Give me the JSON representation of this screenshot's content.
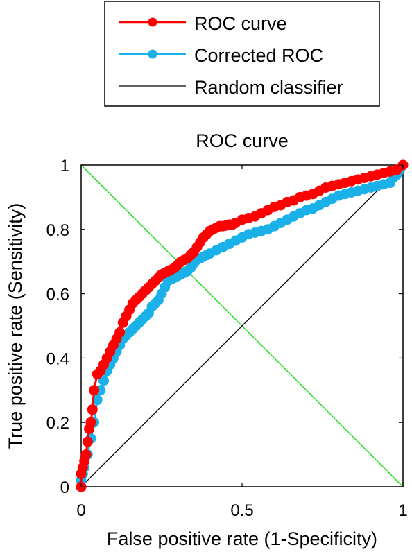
{
  "chart_data": {
    "type": "line",
    "title": "ROC curve",
    "xlabel": "False positive rate (1-Specificity)",
    "ylabel": "True positive rate (Sensitivity)",
    "xlim": [
      0,
      1
    ],
    "ylim": [
      0,
      1
    ],
    "xticks": [
      0,
      0.5,
      1
    ],
    "yticks": [
      0,
      0.2,
      0.4,
      0.6,
      0.8,
      1
    ],
    "xtick_labels": [
      "0",
      "0.5",
      "1"
    ],
    "ytick_labels": [
      "0",
      "0.2",
      "0.4",
      "0.6",
      "0.8",
      "1"
    ],
    "grid": false,
    "legend_position": "outside-top",
    "series": [
      {
        "name": "ROC curve",
        "color": "#ff0000",
        "marker": "circle",
        "x": [
          0,
          0,
          0.005,
          0.01,
          0.015,
          0.02,
          0.025,
          0.03,
          0.035,
          0.04,
          0.05,
          0.06,
          0.07,
          0.08,
          0.09,
          0.1,
          0.11,
          0.12,
          0.13,
          0.14,
          0.15,
          0.16,
          0.17,
          0.18,
          0.19,
          0.2,
          0.21,
          0.22,
          0.23,
          0.24,
          0.25,
          0.26,
          0.27,
          0.28,
          0.29,
          0.3,
          0.31,
          0.32,
          0.33,
          0.34,
          0.35,
          0.36,
          0.37,
          0.38,
          0.39,
          0.4,
          0.41,
          0.42,
          0.43,
          0.44,
          0.45,
          0.46,
          0.47,
          0.48,
          0.5,
          0.52,
          0.54,
          0.56,
          0.58,
          0.6,
          0.62,
          0.64,
          0.66,
          0.68,
          0.7,
          0.72,
          0.74,
          0.76,
          0.78,
          0.8,
          0.82,
          0.84,
          0.86,
          0.88,
          0.9,
          0.92,
          0.94,
          0.96,
          0.98,
          1
        ],
        "y": [
          0,
          0.04,
          0.06,
          0.08,
          0.1,
          0.14,
          0.18,
          0.2,
          0.24,
          0.3,
          0.35,
          0.36,
          0.38,
          0.4,
          0.42,
          0.44,
          0.46,
          0.48,
          0.51,
          0.53,
          0.55,
          0.57,
          0.58,
          0.59,
          0.6,
          0.61,
          0.62,
          0.63,
          0.64,
          0.65,
          0.66,
          0.665,
          0.67,
          0.675,
          0.68,
          0.69,
          0.7,
          0.705,
          0.71,
          0.72,
          0.73,
          0.745,
          0.76,
          0.775,
          0.785,
          0.795,
          0.8,
          0.805,
          0.81,
          0.81,
          0.812,
          0.815,
          0.815,
          0.82,
          0.83,
          0.835,
          0.84,
          0.85,
          0.86,
          0.87,
          0.875,
          0.885,
          0.89,
          0.9,
          0.905,
          0.91,
          0.92,
          0.93,
          0.935,
          0.94,
          0.945,
          0.95,
          0.955,
          0.96,
          0.965,
          0.97,
          0.975,
          0.98,
          0.985,
          1
        ]
      },
      {
        "name": "Corrected ROC",
        "color": "#1ab0e8",
        "marker": "circle",
        "x": [
          0,
          0,
          0.005,
          0.01,
          0.02,
          0.03,
          0.04,
          0.05,
          0.06,
          0.07,
          0.08,
          0.09,
          0.1,
          0.11,
          0.12,
          0.13,
          0.14,
          0.15,
          0.16,
          0.17,
          0.18,
          0.19,
          0.2,
          0.21,
          0.22,
          0.23,
          0.24,
          0.25,
          0.26,
          0.27,
          0.28,
          0.29,
          0.3,
          0.31,
          0.32,
          0.33,
          0.34,
          0.35,
          0.36,
          0.37,
          0.38,
          0.39,
          0.4,
          0.42,
          0.44,
          0.46,
          0.48,
          0.5,
          0.52,
          0.54,
          0.56,
          0.58,
          0.6,
          0.62,
          0.64,
          0.66,
          0.68,
          0.7,
          0.72,
          0.74,
          0.76,
          0.78,
          0.8,
          0.82,
          0.84,
          0.86,
          0.88,
          0.9,
          0.92,
          0.94,
          0.96,
          0.97,
          0.98,
          0.99,
          1
        ],
        "y": [
          0,
          0.02,
          0.04,
          0.06,
          0.1,
          0.15,
          0.2,
          0.27,
          0.3,
          0.33,
          0.36,
          0.38,
          0.4,
          0.42,
          0.44,
          0.46,
          0.47,
          0.48,
          0.49,
          0.5,
          0.51,
          0.52,
          0.53,
          0.54,
          0.56,
          0.57,
          0.58,
          0.6,
          0.62,
          0.64,
          0.645,
          0.65,
          0.655,
          0.66,
          0.665,
          0.67,
          0.68,
          0.695,
          0.705,
          0.71,
          0.715,
          0.72,
          0.725,
          0.735,
          0.745,
          0.755,
          0.765,
          0.775,
          0.785,
          0.79,
          0.795,
          0.8,
          0.81,
          0.82,
          0.83,
          0.84,
          0.85,
          0.86,
          0.865,
          0.875,
          0.885,
          0.895,
          0.905,
          0.91,
          0.915,
          0.92,
          0.925,
          0.93,
          0.935,
          0.94,
          0.945,
          0.96,
          0.97,
          0.985,
          1
        ]
      },
      {
        "name": "Random classifier",
        "color": "#000000",
        "marker": "none",
        "x": [
          0,
          1
        ],
        "y": [
          0,
          1
        ]
      },
      {
        "color": "#00dd00",
        "marker": "none",
        "x": [
          0,
          1
        ],
        "y": [
          1,
          0
        ]
      }
    ]
  }
}
